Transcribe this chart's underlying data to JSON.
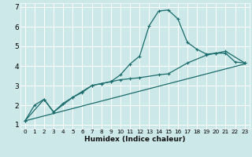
{
  "xlabel": "Humidex (Indice chaleur)",
  "bg_color": "#cce8e8",
  "grid_color": "#ffffff",
  "line_color": "#1a6b6b",
  "xlim": [
    -0.5,
    23.5
  ],
  "ylim": [
    0.8,
    7.2
  ],
  "xticks": [
    0,
    1,
    2,
    3,
    4,
    5,
    6,
    7,
    8,
    9,
    10,
    11,
    12,
    13,
    14,
    15,
    16,
    17,
    18,
    19,
    20,
    21,
    22,
    23
  ],
  "yticks": [
    1,
    2,
    3,
    4,
    5,
    6,
    7
  ],
  "line1_x": [
    0,
    1,
    2,
    3,
    4,
    5,
    6,
    7,
    8,
    9,
    10,
    11,
    12,
    13,
    14,
    15,
    16,
    17,
    18,
    19,
    20,
    21,
    22,
    23
  ],
  "line1_y": [
    1.2,
    2.0,
    2.3,
    1.65,
    2.1,
    2.4,
    2.7,
    3.0,
    3.1,
    3.2,
    3.55,
    4.1,
    4.5,
    6.05,
    6.8,
    6.85,
    6.4,
    5.2,
    4.85,
    4.6,
    4.65,
    4.65,
    4.2,
    4.15
  ],
  "line2_x": [
    0,
    2,
    3,
    5,
    6,
    7,
    8,
    9,
    10,
    11,
    12,
    14,
    15,
    17,
    19,
    20,
    21,
    23
  ],
  "line2_y": [
    1.2,
    2.3,
    1.65,
    2.4,
    2.65,
    3.0,
    3.1,
    3.2,
    3.3,
    3.35,
    3.4,
    3.55,
    3.6,
    4.15,
    4.55,
    4.65,
    4.75,
    4.15
  ],
  "line3_x": [
    0,
    23
  ],
  "line3_y": [
    1.2,
    4.1
  ]
}
